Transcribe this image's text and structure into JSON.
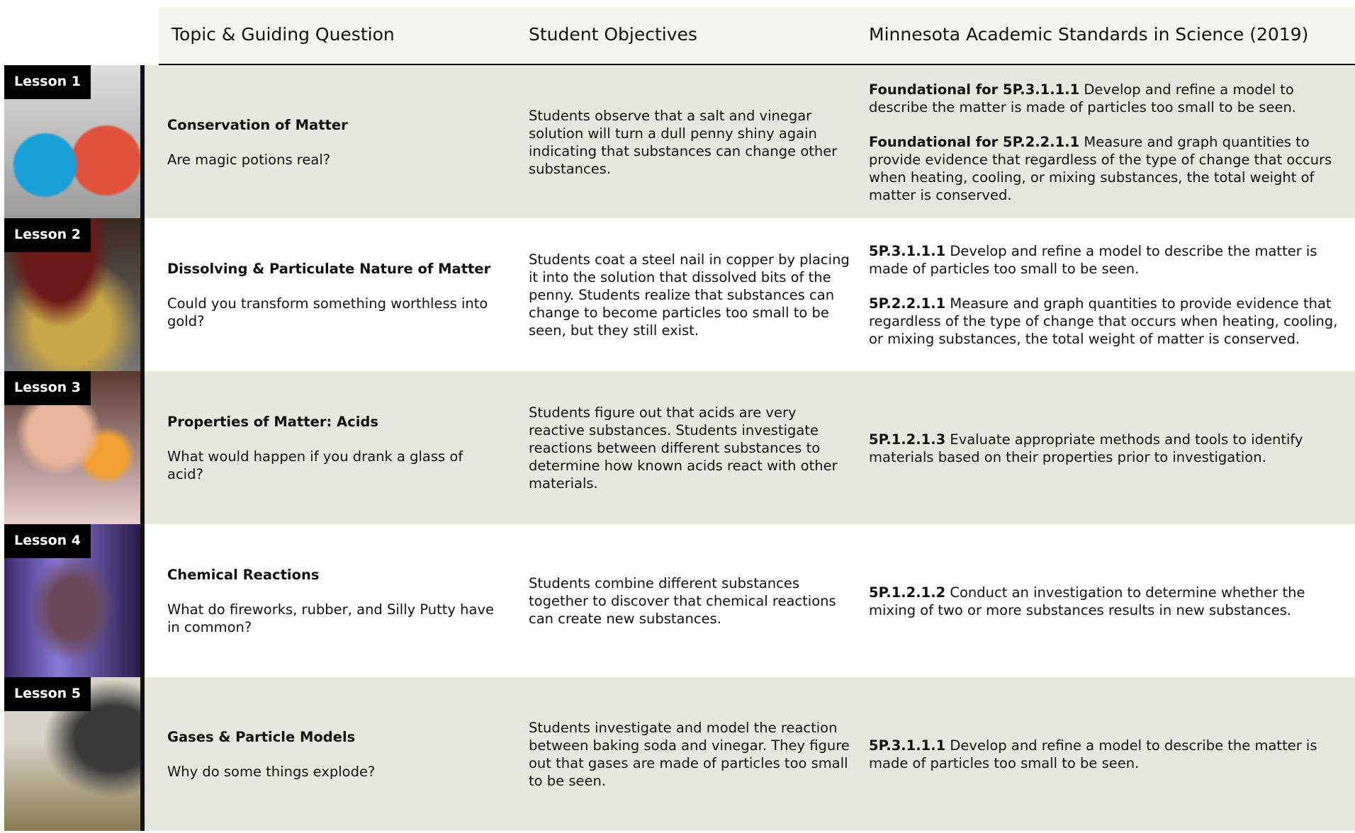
{
  "header": {
    "columns": [
      "Topic & Guiding Question",
      "Student Objectives",
      "Minnesota Academic Standards in Science (2019)"
    ]
  },
  "lessons": [
    {
      "label": "Lesson 1",
      "title": "Conservation of Matter",
      "question": "Are magic potions real?",
      "objectives": "Students observe that a salt and vinegar solution will turn a dull penny shiny again indicating that substances can change other substances.",
      "standards": [
        {
          "code": "Foundational for 5P.3.1.1.1",
          "text": "Develop and refine a model to describe the matter is made of particles too small to be seen."
        },
        {
          "code": "Foundational for 5P.2.2.1.1",
          "text": "Measure and graph quantities to provide evidence that regardless of the type of change that occurs when heating, cooling, or mixing substances, the total weight of matter is conserved."
        }
      ]
    },
    {
      "label": "Lesson 2",
      "title": "Dissolving & Particulate Nature of Matter",
      "question": "Could you transform something worthless into gold?",
      "objectives": "Students coat a steel nail in copper by placing it into the solution that dissolved bits of the penny. Students realize that substances can change to become particles too small to be seen, but they still exist.",
      "standards": [
        {
          "code": "5P.3.1.1.1",
          "text": "Develop and refine a model to describe the matter is made of particles too small to be seen."
        },
        {
          "code": "5P.2.2.1.1",
          "text": "Measure and graph quantities to provide evidence that regardless of the type of change that occurs when heating, cooling, or mixing substances, the total weight of matter is conserved."
        }
      ]
    },
    {
      "label": "Lesson 3",
      "title": "Properties of Matter: Acids",
      "question": "What would happen if you drank a glass of acid?",
      "objectives": "Students figure out that acids are very reactive substances. Students investigate reactions between different substances to determine how known acids react with other materials.",
      "standards": [
        {
          "code": "5P.1.2.1.3",
          "text": "Evaluate appropriate methods and tools to identify materials based on their properties prior to investigation."
        }
      ]
    },
    {
      "label": "Lesson 4",
      "title": "Chemical Reactions",
      "question": "What do fireworks, rubber, and Silly Putty have in common?",
      "objectives": "Students combine different substances together to discover that chemical reactions can create new substances.",
      "standards": [
        {
          "code": "5P.1.2.1.2",
          "text": "Conduct an investigation to determine whether the mixing of two or more substances results in new substances."
        }
      ]
    },
    {
      "label": "Lesson 5",
      "title": "Gases & Particle Models",
      "question": "Why do some things explode?",
      "objectives": "Students investigate and model the reaction between baking soda and vinegar. They figure out that gases are made of particles too small to be seen.",
      "standards": [
        {
          "code": "5P.3.1.1.1",
          "text": "Develop and refine a model to describe the matter is made of particles too small to be seen."
        }
      ]
    }
  ]
}
